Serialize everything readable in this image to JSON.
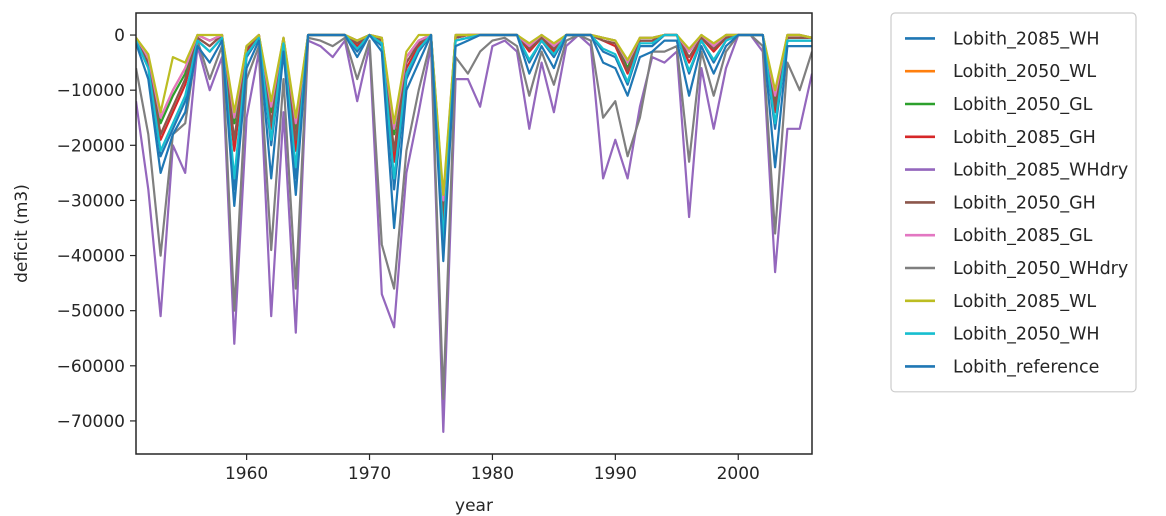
{
  "chart_data": {
    "type": "line",
    "title": "",
    "xlabel": "year",
    "ylabel": "deficit (m3)",
    "xlim": [
      1951,
      2006
    ],
    "ylim": [
      -76000,
      4000
    ],
    "xticks": [
      1960,
      1970,
      1980,
      1990,
      2000
    ],
    "yticks": [
      0,
      -10000,
      -20000,
      -30000,
      -40000,
      -50000,
      -60000,
      -70000
    ],
    "ytick_labels": [
      "0",
      "−10000",
      "−20000",
      "−30000",
      "−40000",
      "−50000",
      "−60000",
      "−70000"
    ],
    "grid": false,
    "legend_position": "outside-right",
    "x": [
      1951,
      1952,
      1953,
      1954,
      1955,
      1956,
      1957,
      1958,
      1959,
      1960,
      1961,
      1962,
      1963,
      1964,
      1965,
      1966,
      1967,
      1968,
      1969,
      1970,
      1971,
      1972,
      1973,
      1974,
      1975,
      1976,
      1977,
      1978,
      1979,
      1980,
      1981,
      1982,
      1983,
      1984,
      1985,
      1986,
      1987,
      1988,
      1989,
      1990,
      1991,
      1992,
      1993,
      1994,
      1995,
      1996,
      1997,
      1998,
      1999,
      2000,
      2001,
      2002,
      2003,
      2004,
      2005,
      2006
    ],
    "series": [
      {
        "name": "Lobith_2085_WH",
        "color": "#1f77b4",
        "values": [
          -1000,
          -6000,
          -22000,
          -17000,
          -12000,
          -1000,
          -3000,
          -500,
          -28000,
          -4000,
          -500,
          -20000,
          -2000,
          -26000,
          0,
          0,
          0,
          0,
          -3000,
          0,
          -2000,
          -28000,
          -8000,
          -3000,
          0,
          -38000,
          -1000,
          -500,
          0,
          0,
          0,
          0,
          -5000,
          -1000,
          -4000,
          0,
          0,
          0,
          -3000,
          -4000,
          -9000,
          -2000,
          -2000,
          0,
          0,
          -7000,
          -1000,
          -5000,
          -1000,
          0,
          0,
          0,
          -17000,
          -1000,
          -1000,
          -1000
        ]
      },
      {
        "name": "Lobith_2050_WL",
        "color": "#ff7f0e",
        "values": [
          -500,
          -4000,
          -15000,
          -10000,
          -6000,
          0,
          -1000,
          0,
          -15000,
          -2000,
          0,
          -13000,
          -500,
          -16000,
          0,
          0,
          0,
          0,
          -1000,
          0,
          -500,
          -17000,
          -4000,
          -1000,
          0,
          -30000,
          0,
          0,
          0,
          0,
          0,
          0,
          -2000,
          0,
          -2000,
          0,
          0,
          0,
          -500,
          -1000,
          -5000,
          -500,
          -500,
          0,
          0,
          -3000,
          0,
          -2000,
          0,
          0,
          0,
          0,
          -11000,
          0,
          0,
          -500
        ]
      },
      {
        "name": "Lobith_2050_GL",
        "color": "#2ca02c",
        "values": [
          -500,
          -4000,
          -16000,
          -11000,
          -7000,
          0,
          -1000,
          0,
          -16000,
          -2000,
          0,
          -14000,
          -500,
          -17000,
          0,
          0,
          0,
          0,
          -1000,
          0,
          -500,
          -18000,
          -4000,
          -1000,
          0,
          -31000,
          0,
          0,
          0,
          0,
          0,
          0,
          -2000,
          0,
          -2000,
          0,
          0,
          0,
          -500,
          -1000,
          -6000,
          -500,
          -500,
          0,
          0,
          -3000,
          0,
          -2000,
          0,
          0,
          0,
          0,
          -12000,
          0,
          0,
          -500
        ]
      },
      {
        "name": "Lobith_2085_GH",
        "color": "#d62728",
        "values": [
          -1000,
          -5000,
          -19000,
          -14000,
          -9000,
          -500,
          -2000,
          0,
          -21000,
          -3000,
          0,
          -17000,
          -1000,
          -21000,
          0,
          0,
          0,
          0,
          -2000,
          0,
          -1000,
          -23000,
          -6000,
          -2000,
          0,
          -35000,
          -500,
          0,
          0,
          0,
          0,
          0,
          -3000,
          -500,
          -3000,
          0,
          0,
          0,
          -1000,
          -2000,
          -7000,
          -1000,
          -1000,
          0,
          0,
          -5000,
          -500,
          -3000,
          -500,
          0,
          0,
          0,
          -14000,
          -500,
          -500,
          -500
        ]
      },
      {
        "name": "Lobith_2085_WHdry",
        "color": "#9467bd",
        "values": [
          -12000,
          -28000,
          -51000,
          -20000,
          -25000,
          -2000,
          -10000,
          -4000,
          -56000,
          -15000,
          -3000,
          -51000,
          -14000,
          -54000,
          -1000,
          -2000,
          -4000,
          -1000,
          -12000,
          -2000,
          -47000,
          -53000,
          -25000,
          -14000,
          -2000,
          -72000,
          -8000,
          -8000,
          -13000,
          -2000,
          -1000,
          -3000,
          -17000,
          -5000,
          -14000,
          -2000,
          0,
          -2000,
          -26000,
          -19000,
          -26000,
          -13000,
          -4000,
          -5000,
          -3000,
          -33000,
          -6000,
          -17000,
          -6000,
          0,
          0,
          -3000,
          -43000,
          -17000,
          -17000,
          -7000
        ]
      },
      {
        "name": "Lobith_2050_GH",
        "color": "#8c564b",
        "values": [
          -1000,
          -5000,
          -18000,
          -13000,
          -8000,
          -500,
          -2000,
          0,
          -19000,
          -2500,
          0,
          -16000,
          -1000,
          -19000,
          0,
          0,
          0,
          0,
          -1500,
          0,
          -1000,
          -21000,
          -5000,
          -1500,
          0,
          -33000,
          -500,
          0,
          0,
          0,
          0,
          0,
          -2500,
          -500,
          -2500,
          0,
          0,
          0,
          -1000,
          -1500,
          -6500,
          -1000,
          -1000,
          0,
          0,
          -4000,
          -500,
          -2500,
          -500,
          0,
          0,
          0,
          -13000,
          -500,
          -500,
          -500
        ]
      },
      {
        "name": "Lobith_2085_GL",
        "color": "#e377c2",
        "values": [
          -500,
          -4000,
          -15000,
          -10000,
          -6000,
          0,
          -1000,
          0,
          -15000,
          -2000,
          0,
          -13000,
          -500,
          -16000,
          0,
          0,
          0,
          0,
          -1000,
          0,
          -500,
          -17000,
          -4000,
          -1000,
          0,
          -30000,
          0,
          0,
          0,
          0,
          0,
          0,
          -2000,
          0,
          -2000,
          0,
          0,
          0,
          -500,
          -1000,
          -5000,
          -500,
          -500,
          0,
          0,
          -3000,
          0,
          -2000,
          0,
          0,
          0,
          0,
          -11000,
          0,
          0,
          -500
        ]
      },
      {
        "name": "Lobith_2050_WHdry",
        "color": "#7f7f7f",
        "values": [
          -6000,
          -18000,
          -40000,
          -18000,
          -16000,
          -1000,
          -8000,
          -2000,
          -50000,
          -8000,
          -2000,
          -39000,
          -8000,
          -46000,
          -500,
          -1000,
          -2000,
          -500,
          -8000,
          -1000,
          -38000,
          -46000,
          -21000,
          -10000,
          -1000,
          -66000,
          -4000,
          -7000,
          -3000,
          -1000,
          -500,
          -2000,
          -11000,
          -3000,
          -9000,
          -1000,
          0,
          -1000,
          -15000,
          -12000,
          -22000,
          -15000,
          -3000,
          -3000,
          -2000,
          -23000,
          -3000,
          -11000,
          -3000,
          0,
          0,
          -2000,
          -36000,
          -5000,
          -10000,
          -3000
        ]
      },
      {
        "name": "Lobith_2085_WL",
        "color": "#bcbd22",
        "values": [
          -500,
          -3500,
          -14000,
          -4000,
          -5000,
          0,
          0,
          0,
          -14000,
          -2000,
          0,
          -12000,
          -500,
          -15000,
          0,
          0,
          0,
          0,
          -1000,
          0,
          -500,
          -16000,
          -3000,
          0,
          0,
          -29000,
          0,
          0,
          0,
          0,
          0,
          0,
          -1500,
          0,
          -1500,
          0,
          0,
          0,
          -500,
          -1000,
          -4500,
          -500,
          -500,
          0,
          0,
          -2500,
          0,
          -1500,
          0,
          0,
          0,
          0,
          -10000,
          0,
          0,
          -500
        ]
      },
      {
        "name": "Lobith_2050_WH",
        "color": "#17becf",
        "values": [
          -1000,
          -6000,
          -21000,
          -16000,
          -11000,
          -1000,
          -3000,
          -500,
          -26000,
          -3500,
          -500,
          -19000,
          -1500,
          -24000,
          0,
          0,
          0,
          0,
          -2500,
          0,
          -1500,
          -26000,
          -7000,
          -2500,
          0,
          -37000,
          -1000,
          -500,
          0,
          0,
          0,
          0,
          -4500,
          -1000,
          -3500,
          0,
          0,
          0,
          -2500,
          -3500,
          -8500,
          -1500,
          -1500,
          0,
          0,
          -6500,
          -1000,
          -4500,
          -1000,
          0,
          0,
          0,
          -16000,
          -1000,
          -1000,
          -1000
        ]
      },
      {
        "name": "Lobith_reference",
        "color": "#1f77b4",
        "values": [
          -1500,
          -8000,
          -25000,
          -18000,
          -14000,
          -2000,
          -5000,
          -1000,
          -31000,
          -6000,
          -1000,
          -26000,
          -3000,
          -29000,
          0,
          0,
          0,
          0,
          -4000,
          0,
          -3000,
          -35000,
          -10000,
          -5000,
          0,
          -41000,
          -2000,
          -1000,
          0,
          0,
          0,
          0,
          -7000,
          -2000,
          -6000,
          0,
          0,
          0,
          -5000,
          -6000,
          -11000,
          -4000,
          -3000,
          -1000,
          -1000,
          -11000,
          -2000,
          -7000,
          -2000,
          0,
          0,
          0,
          -24000,
          -2000,
          -2000,
          -2000
        ]
      }
    ]
  }
}
